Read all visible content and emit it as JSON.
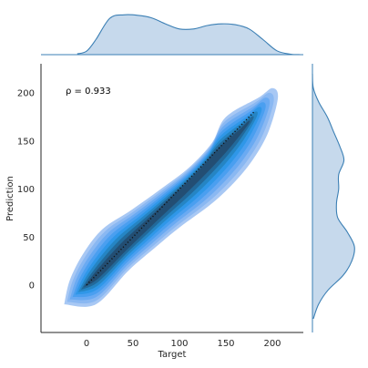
{
  "chart_data": {
    "type": "jointplot-kde",
    "xlabel": "Target",
    "ylabel": "Prediction",
    "annotation": "ρ = 0.933",
    "xlim": [
      -50,
      230
    ],
    "ylim": [
      -50,
      230
    ],
    "xticks": [
      0,
      50,
      100,
      150,
      200
    ],
    "yticks": [
      0,
      50,
      100,
      150,
      200
    ],
    "identity_line": {
      "x": [
        0,
        180
      ],
      "y": [
        0,
        180
      ]
    },
    "colors": {
      "kde_levels": [
        "#a8c8f4",
        "#8ab8f2",
        "#6aaaf2",
        "#4a9ff0",
        "#2f97e8",
        "#2585c4",
        "#22699a",
        "#234e73"
      ],
      "marginal_fill": "#c6d9ec",
      "marginal_line": "#3b7fb4",
      "axis": "#262626"
    },
    "kde_path": {
      "left": [
        [
          -24,
          -20
        ],
        [
          -18,
          5
        ],
        [
          -4,
          32
        ],
        [
          17,
          58
        ],
        [
          48,
          78
        ],
        [
          80,
          100
        ],
        [
          110,
          122
        ],
        [
          135,
          148
        ],
        [
          150,
          175
        ],
        [
          185,
          195
        ],
        [
          200,
          205
        ]
      ],
      "right": [
        [
          10,
          -20
        ],
        [
          45,
          15
        ],
        [
          75,
          40
        ],
        [
          100,
          60
        ],
        [
          135,
          85
        ],
        [
          160,
          108
        ],
        [
          180,
          132
        ],
        [
          196,
          160
        ],
        [
          206,
          195
        ]
      ]
    },
    "marginal_x": {
      "x": [
        -10,
        0,
        10,
        25,
        40,
        55,
        70,
        85,
        100,
        115,
        130,
        145,
        160,
        175,
        190,
        205,
        220,
        230
      ],
      "density": [
        0.02,
        0.08,
        0.35,
        0.85,
        0.93,
        0.92,
        0.86,
        0.72,
        0.6,
        0.6,
        0.68,
        0.72,
        0.7,
        0.6,
        0.35,
        0.09,
        0.01,
        0.0
      ]
    },
    "marginal_y": {
      "y": [
        -35,
        -20,
        -5,
        10,
        25,
        40,
        55,
        70,
        85,
        100,
        115,
        130,
        145,
        160,
        175,
        190,
        205,
        220
      ],
      "density": [
        0.02,
        0.14,
        0.36,
        0.7,
        0.9,
        0.96,
        0.8,
        0.58,
        0.55,
        0.6,
        0.6,
        0.72,
        0.62,
        0.48,
        0.34,
        0.15,
        0.02,
        0.0
      ]
    }
  }
}
